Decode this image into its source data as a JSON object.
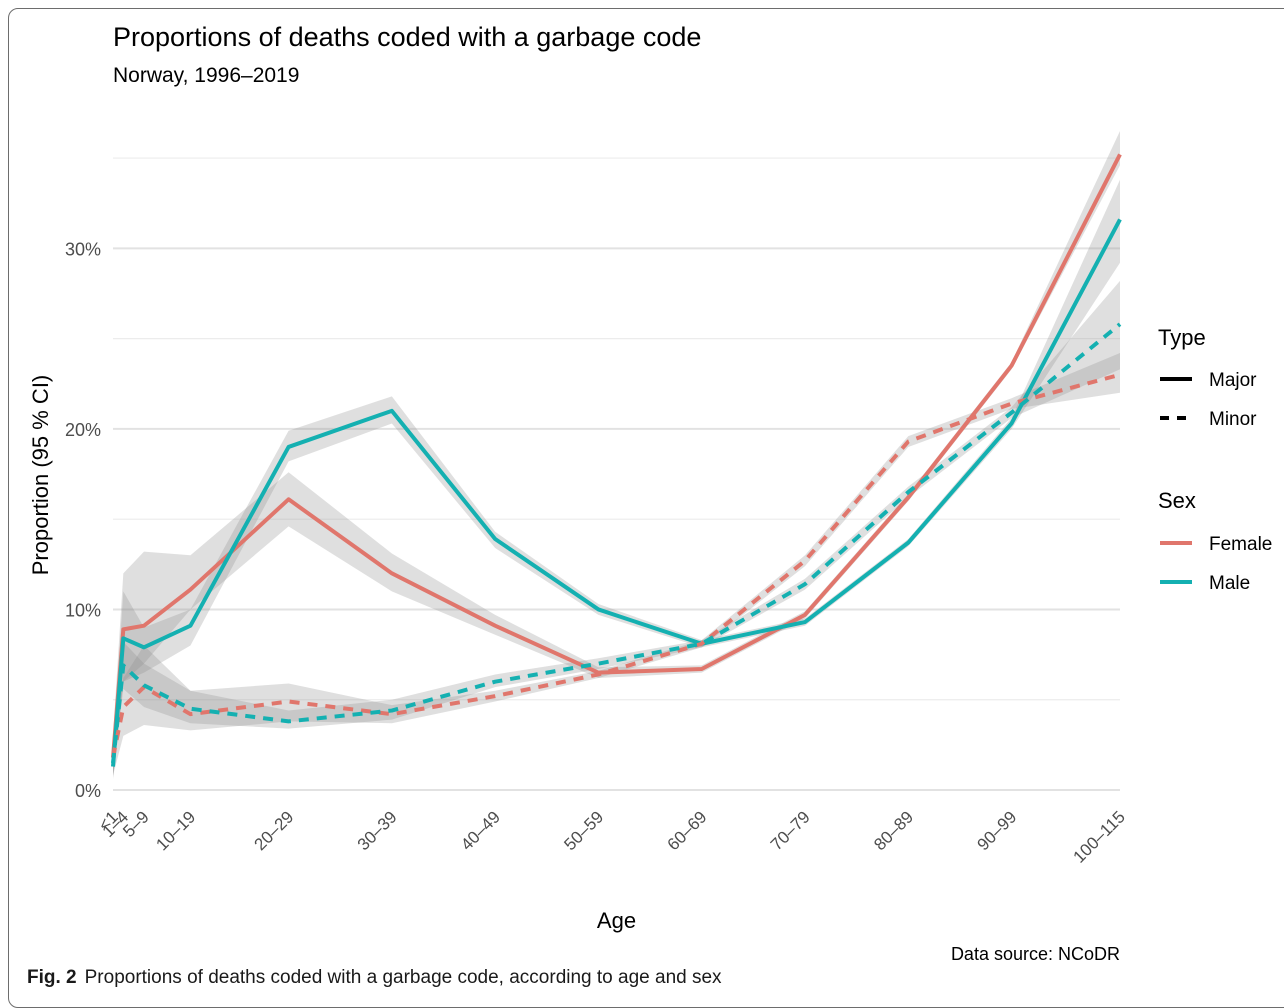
{
  "figure": {
    "label": "Fig. 2",
    "caption": "Proportions of deaths coded with a garbage code, according to age and sex",
    "source": "Data source: NCoDR"
  },
  "chart_data": {
    "type": "line",
    "title": "Proportions of deaths coded with a garbage code",
    "subtitle": "Norway, 1996–2019",
    "xlabel": "Age",
    "ylabel": "Proportion (95 % CI)",
    "categories": [
      "<1",
      "1–4",
      "5–9",
      "10–19",
      "20–29",
      "30–39",
      "40–49",
      "50–59",
      "60–69",
      "70–79",
      "80–89",
      "90–99",
      "100–115"
    ],
    "x_positions": [
      0,
      1,
      3,
      7.5,
      17,
      27,
      37,
      47,
      57,
      67,
      77,
      87,
      97.5
    ],
    "ylim": [
      0,
      36
    ],
    "yticks": [
      0,
      10,
      20,
      30
    ],
    "ytick_labels": [
      "0%",
      "10%",
      "20%",
      "30%"
    ],
    "grid": true,
    "legend": {
      "position": "right",
      "type_title": "Type",
      "type_entries": [
        {
          "label": "Major",
          "linestyle": "solid"
        },
        {
          "label": "Minor",
          "linestyle": "dashed"
        }
      ],
      "sex_title": "Sex",
      "sex_entries": [
        {
          "label": "Female",
          "color": "#e0766c"
        },
        {
          "label": "Male",
          "color": "#14b0b1"
        }
      ]
    },
    "series": [
      {
        "sex": "Female",
        "type": "Major",
        "color": "#e0766c",
        "values": [
          1.8,
          8.9,
          9.1,
          11.1,
          16.1,
          12.0,
          9.1,
          6.5,
          6.7,
          9.7,
          16.2,
          23.5,
          35.2
        ],
        "lower": [
          0.8,
          6.0,
          7.0,
          10.0,
          14.6,
          11.0,
          8.6,
          6.2,
          6.5,
          9.5,
          16.0,
          23.3,
          34.6
        ],
        "upper": [
          3.0,
          12.0,
          13.2,
          13.0,
          17.6,
          13.1,
          9.7,
          6.8,
          6.9,
          9.9,
          16.4,
          23.7,
          36.5
        ]
      },
      {
        "sex": "Male",
        "type": "Major",
        "color": "#14b0b1",
        "values": [
          1.3,
          8.4,
          7.9,
          9.1,
          19.0,
          21.0,
          13.9,
          10.0,
          8.1,
          9.3,
          13.7,
          20.3,
          31.6
        ],
        "lower": [
          0.6,
          6.0,
          6.5,
          8.0,
          18.2,
          20.3,
          13.4,
          9.7,
          7.9,
          9.1,
          13.5,
          20.0,
          29.2
        ],
        "upper": [
          2.2,
          11.0,
          9.0,
          10.0,
          19.9,
          21.8,
          14.3,
          10.3,
          8.3,
          9.5,
          13.9,
          20.6,
          33.8
        ]
      },
      {
        "sex": "Female",
        "type": "Minor",
        "color": "#e0766c",
        "values": [
          1.8,
          4.6,
          5.7,
          4.2,
          4.9,
          4.2,
          5.2,
          6.4,
          8.1,
          12.7,
          19.3,
          21.4,
          23.0
        ],
        "lower": [
          0.8,
          3.0,
          3.6,
          3.3,
          3.8,
          3.7,
          4.9,
          6.2,
          7.9,
          12.4,
          19.0,
          21.1,
          22.0
        ],
        "upper": [
          3.0,
          6.2,
          8.0,
          5.5,
          5.9,
          4.7,
          5.5,
          6.6,
          8.3,
          13.0,
          19.6,
          21.7,
          24.2
        ]
      },
      {
        "sex": "Male",
        "type": "Minor",
        "color": "#14b0b1",
        "values": [
          1.5,
          6.9,
          5.8,
          4.5,
          3.8,
          4.4,
          6.0,
          7.0,
          8.1,
          11.4,
          16.5,
          20.9,
          25.8
        ],
        "lower": [
          0.7,
          5.6,
          4.6,
          3.7,
          3.4,
          3.9,
          5.7,
          6.7,
          7.9,
          11.1,
          16.2,
          20.6,
          23.3
        ],
        "upper": [
          2.5,
          8.2,
          7.0,
          5.5,
          4.4,
          5.0,
          6.4,
          7.3,
          8.3,
          11.7,
          16.8,
          21.2,
          28.2
        ]
      }
    ]
  }
}
